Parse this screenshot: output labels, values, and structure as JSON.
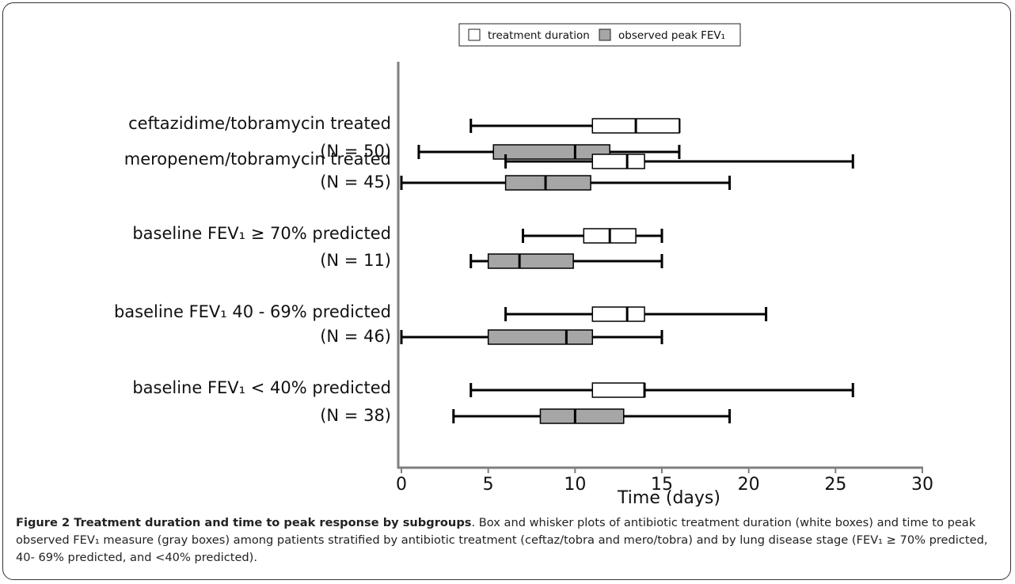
{
  "chart_data": {
    "type": "box",
    "categories": [
      "ceftazidime/tobramycin treated",
      "meropenem/tobramycin treated",
      "baseline FEV₁ ≥ 70% predicted",
      "baseline FEV₁  40 - 69% predicted",
      "baseline FEV₁  < 40% predicted"
    ],
    "category_counts": [
      "(N = 50)",
      "(N = 45)",
      "(N = 11)",
      "(N = 46)",
      "(N = 38)"
    ],
    "series": [
      {
        "name": "treatment duration",
        "color": "#ffffff",
        "min": [
          4,
          6,
          7,
          6,
          4
        ],
        "q1": [
          11,
          11,
          10.5,
          11,
          11
        ],
        "median": [
          13.5,
          13,
          12,
          13,
          14
        ],
        "q3": [
          16,
          14,
          13.5,
          14,
          14
        ],
        "max": [
          16,
          26,
          15,
          21,
          26
        ]
      },
      {
        "name": "observed peak FEV₁",
        "color": "#a6a6a6",
        "min": [
          1,
          0,
          4,
          0,
          3
        ],
        "q1": [
          5.3,
          6,
          5,
          5,
          8
        ],
        "median": [
          10,
          8.3,
          6.8,
          9.5,
          10
        ],
        "q3": [
          12,
          10.9,
          9.9,
          11,
          12.8
        ],
        "max": [
          16,
          18.9,
          15,
          15,
          18.9
        ]
      }
    ],
    "x_label": "Time (days)",
    "xlim": [
      0,
      30
    ],
    "xticks": [
      0,
      5,
      10,
      15,
      20,
      25,
      30
    ],
    "caption_title": "Figure 2 Treatment duration and time to peak response by subgroups",
    "caption_text": ". Box and whisker plots of antibiotic treatment duration (white boxes) and time to peak observed FEV₁ measure (gray boxes) among patients stratified by antibiotic treatment (ceftaz/tobra and mero/tobra) and by lung disease stage (FEV₁ ≥ 70% predicted, 40- 69% predicted, and <40% predicted)."
  }
}
